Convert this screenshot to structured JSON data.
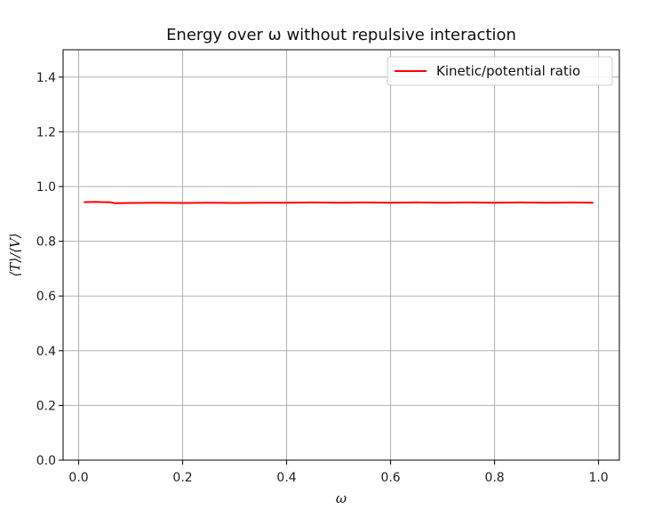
{
  "chart_data": {
    "type": "line",
    "title": "Energy over ω without repulsive interaction",
    "xlabel": "ω",
    "ylabel": "⟨T⟩/⟨V⟩",
    "xlim": [
      -0.03,
      1.04
    ],
    "ylim": [
      0.0,
      1.5
    ],
    "xticks": [
      0.0,
      0.2,
      0.4,
      0.6,
      0.8,
      1.0
    ],
    "xtick_labels": [
      "0.0",
      "0.2",
      "0.4",
      "0.6",
      "0.8",
      "1.0"
    ],
    "yticks": [
      0.0,
      0.2,
      0.4,
      0.6,
      0.8,
      1.0,
      1.2,
      1.4
    ],
    "ytick_labels": [
      "0.0",
      "0.2",
      "0.4",
      "0.6",
      "0.8",
      "1.0",
      "1.2",
      "1.4"
    ],
    "grid": true,
    "legend_position": "top-right",
    "series": [
      {
        "name": "Kinetic/potential ratio",
        "color": "#ff0000",
        "x": [
          0.01,
          0.03,
          0.05,
          0.06,
          0.07,
          0.1,
          0.15,
          0.2,
          0.25,
          0.3,
          0.35,
          0.4,
          0.45,
          0.5,
          0.55,
          0.6,
          0.65,
          0.7,
          0.75,
          0.8,
          0.85,
          0.9,
          0.95,
          0.99
        ],
        "y": [
          0.943,
          0.944,
          0.943,
          0.943,
          0.939,
          0.94,
          0.941,
          0.94,
          0.941,
          0.94,
          0.941,
          0.941,
          0.942,
          0.941,
          0.942,
          0.941,
          0.942,
          0.941,
          0.942,
          0.941,
          0.942,
          0.941,
          0.942,
          0.941
        ]
      }
    ]
  }
}
